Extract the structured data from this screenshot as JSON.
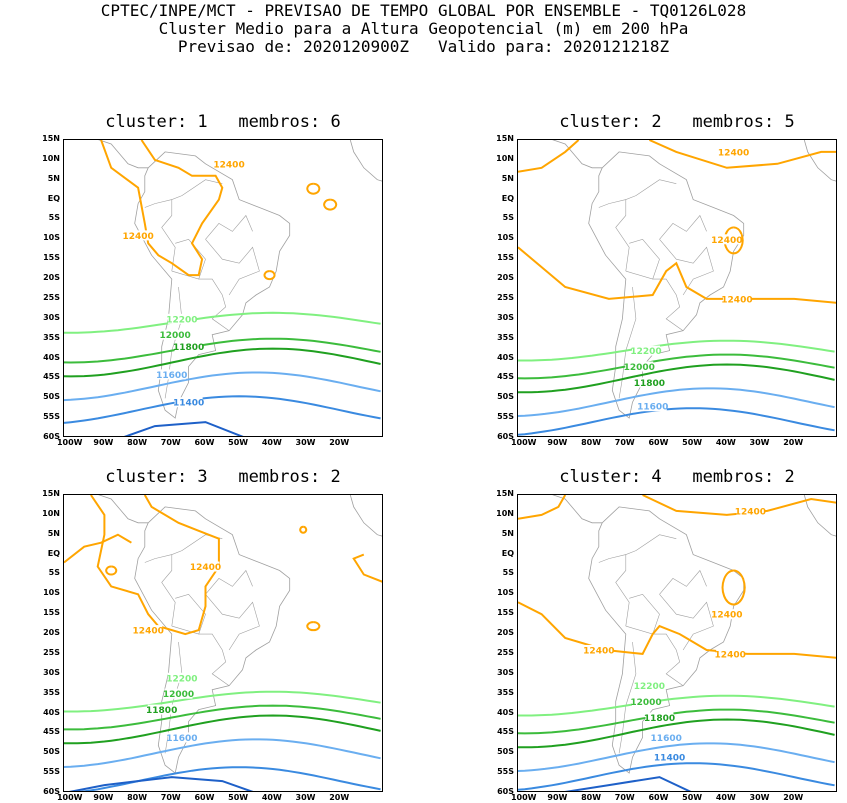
{
  "header": {
    "line1": "CPTEC/INPE/MCT - PREVISAO DE TEMPO GLOBAL POR ENSEMBLE - TQ0126L028",
    "line2": "Cluster Medio para a Altura Geopotencial (m) em 200 hPa",
    "line3": "Previsao de: 2020120900Z   Valido para: 2020121218Z"
  },
  "axes": {
    "y_labels": [
      "15N",
      "10N",
      "5N",
      "EQ",
      "5S",
      "10S",
      "15S",
      "20S",
      "25S",
      "30S",
      "35S",
      "40S",
      "45S",
      "50S",
      "55S",
      "60S"
    ],
    "x_labels": [
      "100W",
      "90W",
      "80W",
      "70W",
      "60W",
      "50W",
      "40W",
      "30W",
      "20W"
    ]
  },
  "colors": {
    "12400": "#ffa500",
    "12200": "#80f080",
    "12000": "#3cbc3c",
    "11800": "#20a020",
    "11600": "#6aaef0",
    "11400": "#3a8ae0",
    "11200": "#1e60c8",
    "map": "#a0a0a0"
  },
  "panels": [
    {
      "title": "cluster: 1   membros: 6",
      "labels": [
        "12400",
        "12400",
        "12200",
        "12000",
        "11800",
        "11600",
        "11400"
      ]
    },
    {
      "title": "cluster: 2   membros: 5",
      "labels": [
        "12400",
        "12400",
        "12400",
        "12200",
        "12000",
        "11800",
        "11600"
      ]
    },
    {
      "title": "cluster: 3   membros: 2",
      "labels": [
        "12400",
        "12400",
        "12200",
        "12000",
        "11800",
        "11600"
      ]
    },
    {
      "title": "cluster: 4   membros: 2",
      "labels": [
        "12400",
        "12400",
        "12400",
        "12400",
        "12200",
        "12000",
        "11800",
        "11600",
        "11400"
      ]
    }
  ]
}
